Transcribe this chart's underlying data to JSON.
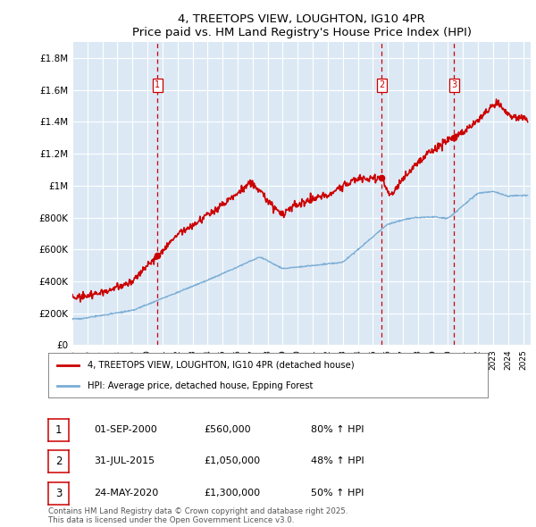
{
  "title": "4, TREETOPS VIEW, LOUGHTON, IG10 4PR",
  "subtitle": "Price paid vs. HM Land Registry's House Price Index (HPI)",
  "ylabel_ticks": [
    "£0",
    "£200K",
    "£400K",
    "£600K",
    "£800K",
    "£1M",
    "£1.2M",
    "£1.4M",
    "£1.6M",
    "£1.8M"
  ],
  "ylabel_values": [
    0,
    200000,
    400000,
    600000,
    800000,
    1000000,
    1200000,
    1400000,
    1600000,
    1800000
  ],
  "ylim": [
    0,
    1900000
  ],
  "xlim_start": 1995.0,
  "xlim_end": 2025.5,
  "sale_dates": [
    2000.67,
    2015.58,
    2020.39
  ],
  "sale_prices": [
    560000,
    1050000,
    1300000
  ],
  "sale_labels": [
    "1",
    "2",
    "3"
  ],
  "vline_color": "#cc0000",
  "hpi_color": "#7badd4",
  "price_color": "#cc0000",
  "plot_bg": "#dce9f5",
  "grid_color": "#ffffff",
  "legend_label_red": "4, TREETOPS VIEW, LOUGHTON, IG10 4PR (detached house)",
  "legend_label_blue": "HPI: Average price, detached house, Epping Forest",
  "table_rows": [
    {
      "num": "1",
      "date": "01-SEP-2000",
      "price": "£560,000",
      "change": "80% ↑ HPI"
    },
    {
      "num": "2",
      "date": "31-JUL-2015",
      "price": "£1,050,000",
      "change": "48% ↑ HPI"
    },
    {
      "num": "3",
      "date": "24-MAY-2020",
      "price": "£1,300,000",
      "change": "50% ↑ HPI"
    }
  ],
  "footer": "Contains HM Land Registry data © Crown copyright and database right 2025.\nThis data is licensed under the Open Government Licence v3.0."
}
